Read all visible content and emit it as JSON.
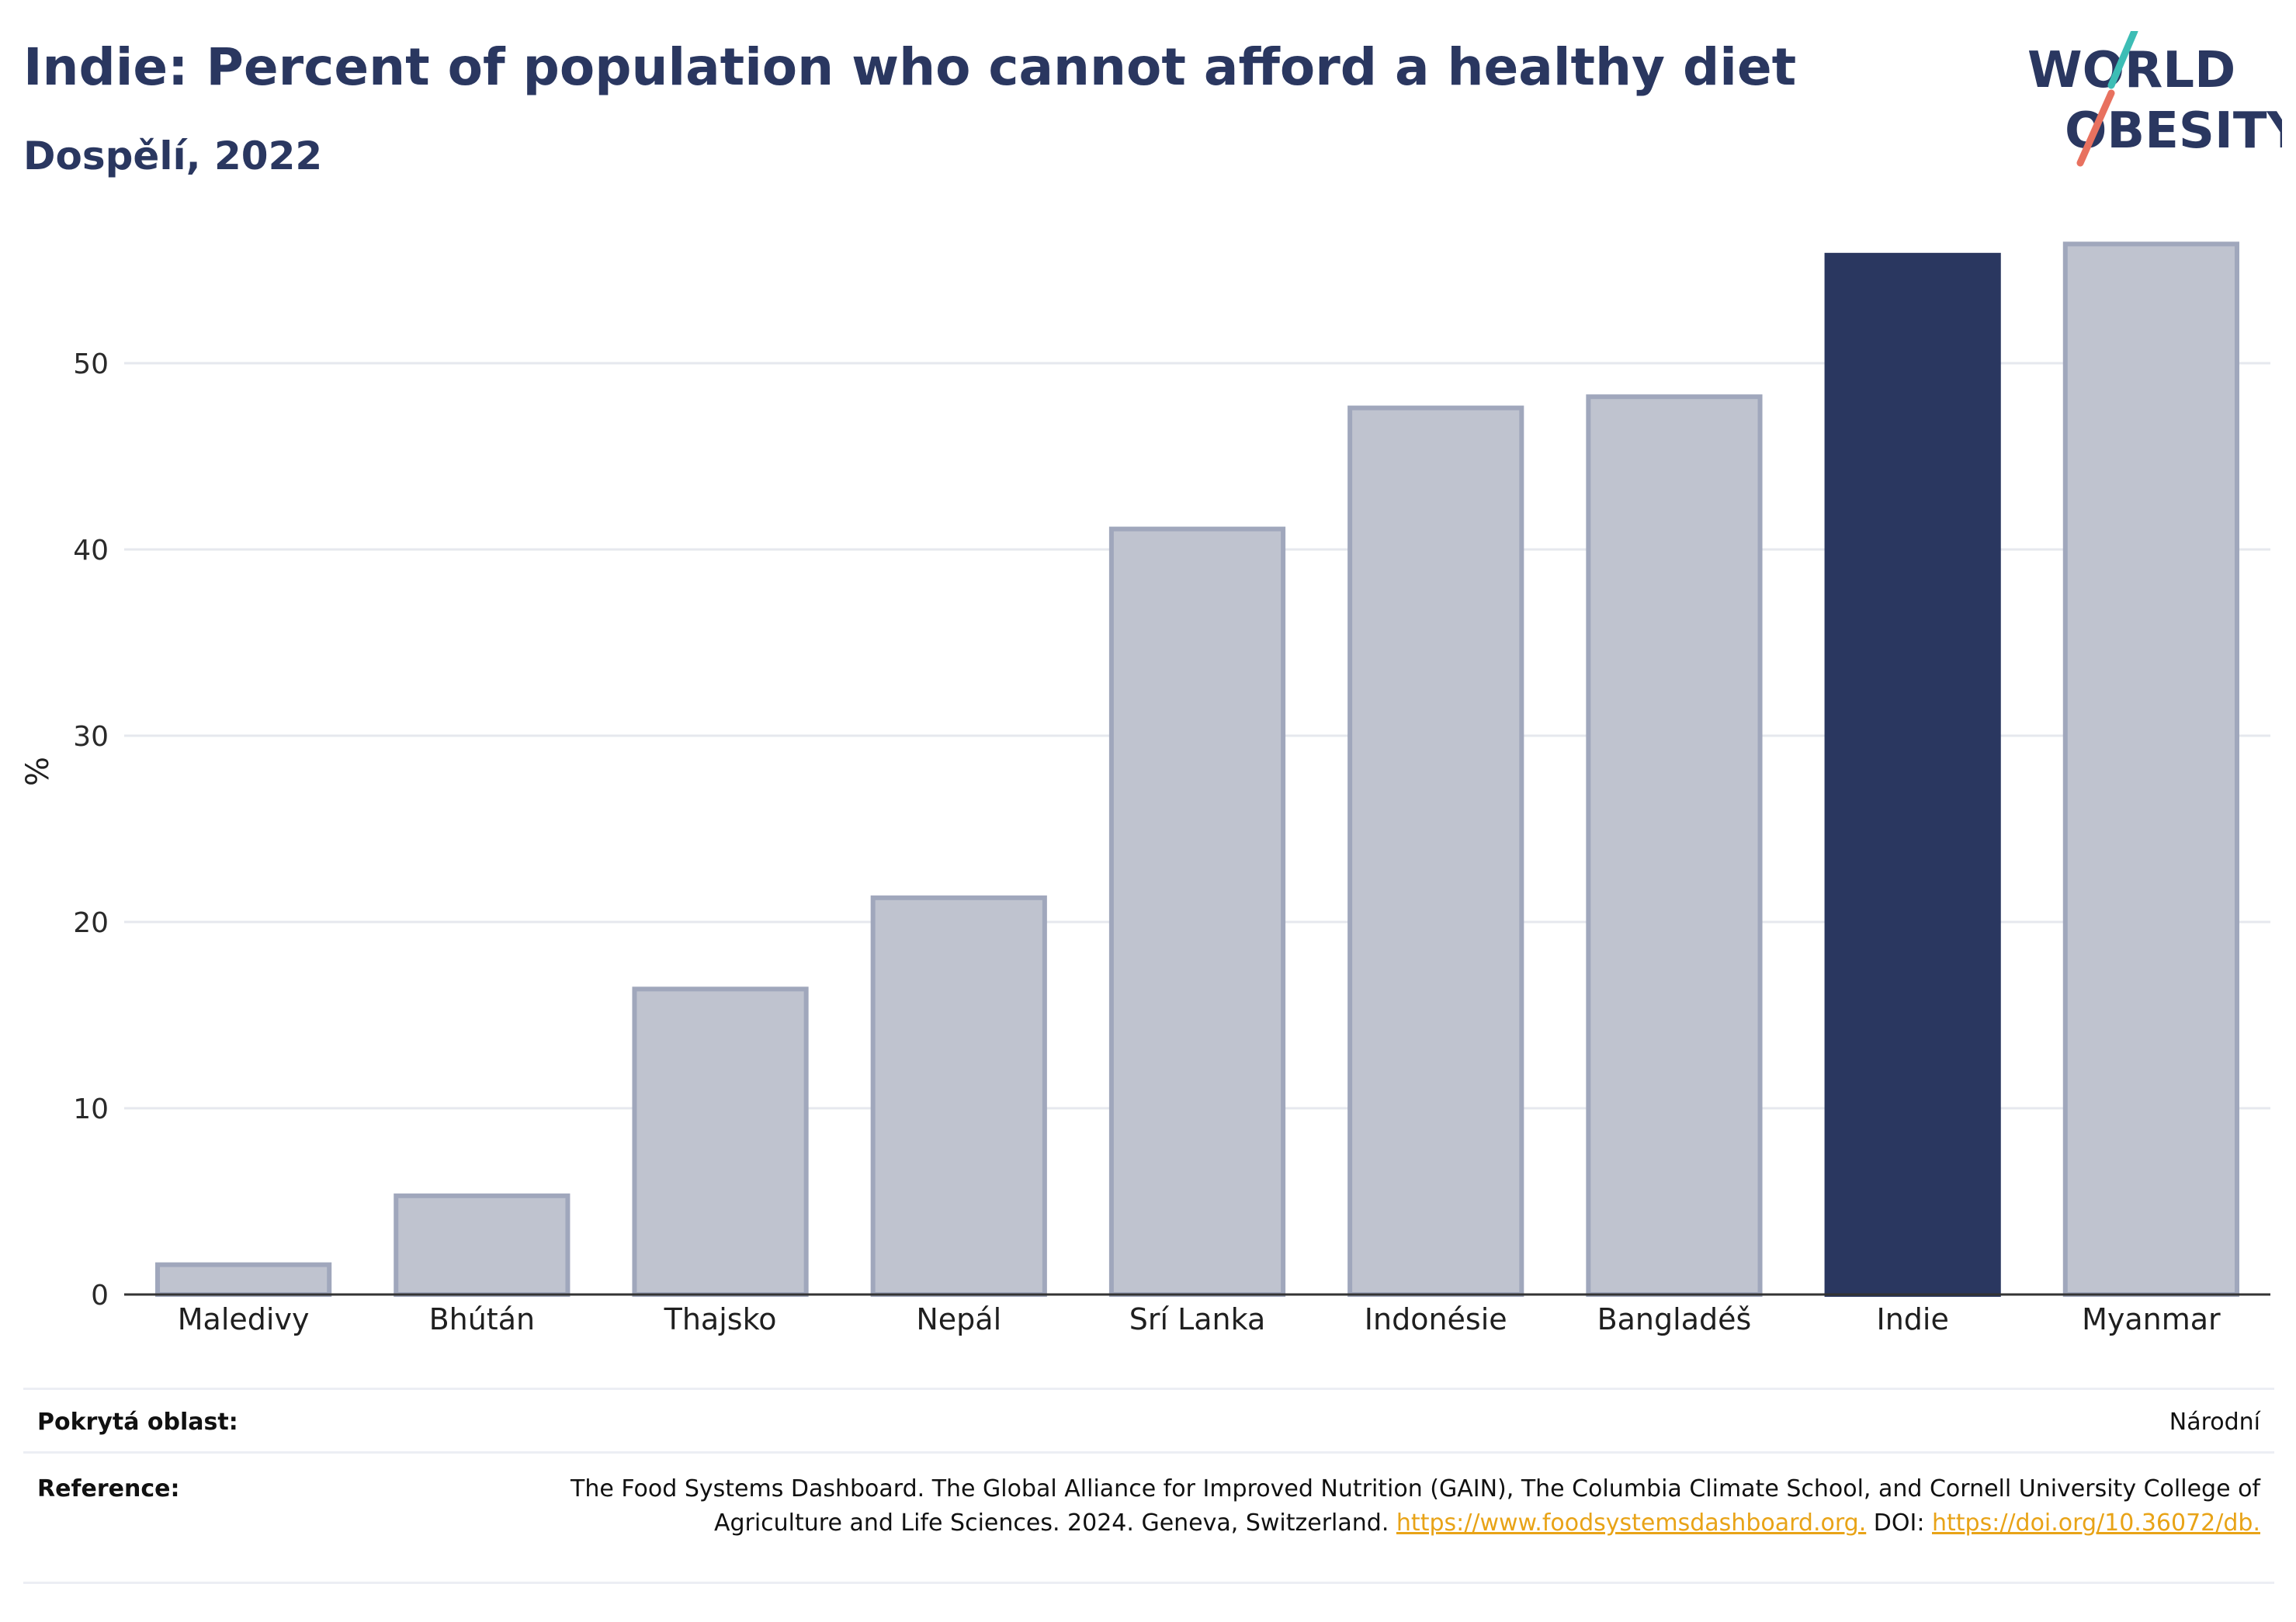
{
  "header": {
    "title": "Indie: Percent of population who cannot afford a healthy diet",
    "subtitle": "Dospělí, 2022"
  },
  "logo": {
    "line1": "WORLD",
    "line2": "OBESITY",
    "colors": {
      "text": "#2a3760",
      "slash_top": "#3dbdb5",
      "slash_bottom": "#e8715f"
    }
  },
  "chart_data": {
    "type": "bar",
    "categories": [
      "Maledivy",
      "Bhútán",
      "Thajsko",
      "Nepál",
      "Srí Lanka",
      "Indonésie",
      "Bangladéš",
      "Indie",
      "Myanmar"
    ],
    "values": [
      1.6,
      5.3,
      16.4,
      21.3,
      41.1,
      47.6,
      48.2,
      55.8,
      56.4
    ],
    "highlight": "Indie",
    "ylabel": "%",
    "xlabel": "",
    "ylim": [
      0,
      57
    ],
    "yticks": [
      0,
      10,
      20,
      30,
      40,
      50
    ],
    "grid": true,
    "colors": {
      "bar": "#bfc3cf",
      "bar_border": "#a0a7bc",
      "highlight": "#2a3760",
      "grid": "#e6e8ee",
      "axis": "#333333"
    }
  },
  "footer": {
    "coverage_label": "Pokrytá oblast:",
    "coverage_value": "Národní",
    "reference_label": "Reference:",
    "reference_text_1": "The Food Systems Dashboard. The Global Alliance for Improved Nutrition (GAIN), The Columbia Climate School, and Cornell University College of Agriculture and Life Sciences. 2024. Geneva, Switzerland.",
    "reference_link_1": "https://www.foodsystemsdashboard.org.",
    "reference_text_2": "DOI:",
    "reference_link_2": "https://doi.org/10.36072/db."
  }
}
